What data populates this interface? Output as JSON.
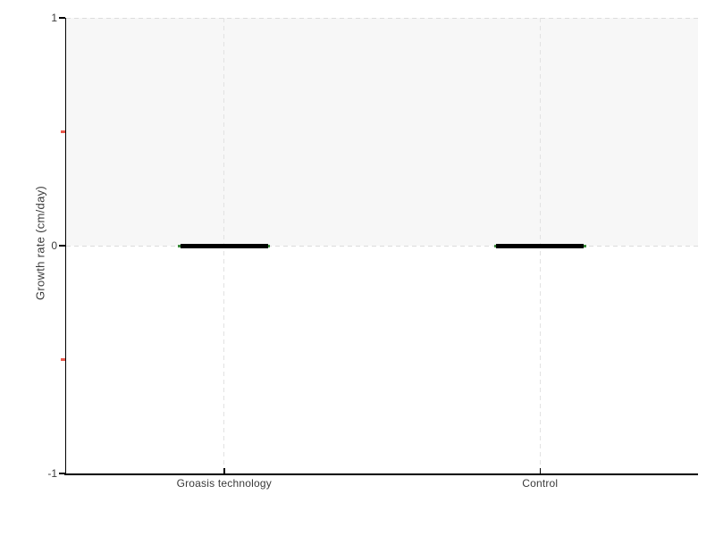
{
  "chart_data": {
    "type": "boxplot",
    "title": "",
    "xlabel": "",
    "ylabel": "Growth rate (cm/day)",
    "categories": [
      "Groasis technology",
      "Control"
    ],
    "values": [
      {
        "category": "Groasis technology",
        "median": 0,
        "q1": 0,
        "q3": 0,
        "whisker_low": 0,
        "whisker_high": 0
      },
      {
        "category": "Control",
        "median": 0,
        "q1": 0,
        "q3": 0,
        "whisker_low": 0,
        "whisker_high": 0
      }
    ],
    "ylim": [
      -1,
      1
    ],
    "yticks": [
      {
        "value": 1,
        "label": "1"
      },
      {
        "value": 0,
        "label": "0"
      },
      {
        "value": -1,
        "label": "-1"
      }
    ],
    "yticks_minor": [
      0.5,
      -0.5
    ],
    "gridlines_y": [
      1,
      0
    ],
    "grid_style": "dashed",
    "shaded_band_y": [
      0,
      1
    ],
    "legend": "none"
  },
  "colors": {
    "background": "#ffffff",
    "band": "#f7f7f7",
    "grid_h": "#dcdcdc",
    "grid_v": "#e2e2e2",
    "axis": "#000000",
    "text": "#3c3c3c",
    "minor_tick": "#e8594c",
    "box": "#000000",
    "median_cap": "#3a8a3a"
  }
}
